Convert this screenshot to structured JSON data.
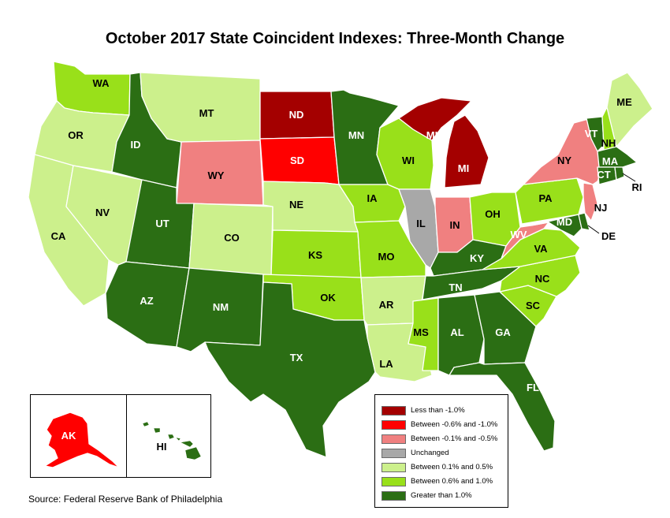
{
  "title": "October 2017 State Coincident Indexes: Three-Month Change",
  "source": "Source: Federal Reserve Bank of Philadelphia",
  "colors": {
    "lt_neg1": "#a40000",
    "neg06_neg1": "#ff0000",
    "neg01_neg05": "#f08080",
    "unchanged": "#a8a8a8",
    "p01_05": "#ccf08c",
    "p06_10": "#99e01a",
    "gt1": "#2b6e14"
  },
  "legend": [
    {
      "key": "lt_neg1",
      "label": "Less than -1.0%"
    },
    {
      "key": "neg06_neg1",
      "label": "Between -0.6% and -1.0%"
    },
    {
      "key": "neg01_neg05",
      "label": "Between -0.1% and -0.5%"
    },
    {
      "key": "unchanged",
      "label": "Unchanged"
    },
    {
      "key": "p01_05",
      "label": "Between 0.1% and 0.5%"
    },
    {
      "key": "p06_10",
      "label": "Between 0.6% and 1.0%"
    },
    {
      "key": "gt1",
      "label": "Greater than 1.0%"
    }
  ],
  "states": {
    "WA": "p06_10",
    "OR": "p01_05",
    "CA": "p01_05",
    "NV": "p01_05",
    "ID": "gt1",
    "MT": "p01_05",
    "WY": "neg01_neg05",
    "UT": "gt1",
    "CO": "p01_05",
    "AZ": "gt1",
    "NM": "gt1",
    "ND": "lt_neg1",
    "SD": "neg06_neg1",
    "NE": "p01_05",
    "KS": "p06_10",
    "OK": "p06_10",
    "TX": "gt1",
    "MN": "gt1",
    "IA": "p06_10",
    "MO": "p06_10",
    "AR": "p01_05",
    "LA": "p01_05",
    "WI": "p06_10",
    "IL": "unchanged",
    "MI": "lt_neg1",
    "IN": "neg01_neg05",
    "OH": "p06_10",
    "KY": "gt1",
    "TN": "gt1",
    "MS": "p06_10",
    "AL": "gt1",
    "GA": "gt1",
    "FL": "gt1",
    "SC": "p06_10",
    "NC": "p06_10",
    "VA": "p06_10",
    "WV": "neg01_neg05",
    "PA": "p06_10",
    "NY": "neg01_neg05",
    "NJ": "neg01_neg05",
    "DE": "gt1",
    "MD": "gt1",
    "VT": "gt1",
    "NH": "p06_10",
    "ME": "p01_05",
    "MA": "gt1",
    "CT": "gt1",
    "RI": "gt1",
    "AK": "neg06_neg1",
    "HI": "gt1"
  },
  "labels": {
    "WA": "WA",
    "OR": "OR",
    "CA": "CA",
    "NV": "NV",
    "ID": "ID",
    "MT": "MT",
    "WY": "WY",
    "UT": "UT",
    "CO": "CO",
    "AZ": "AZ",
    "NM": "NM",
    "ND": "ND",
    "SD": "SD",
    "NE": "NE",
    "KS": "KS",
    "OK": "OK",
    "TX": "TX",
    "MN": "MN",
    "IA": "IA",
    "MO": "MO",
    "AR": "AR",
    "LA": "LA",
    "WI": "WI",
    "IL": "IL",
    "MI_UP": "MI",
    "MI": "MI",
    "IN": "IN",
    "OH": "OH",
    "KY": "KY",
    "TN": "TN",
    "MS": "MS",
    "AL": "AL",
    "GA": "GA",
    "FL": "FL",
    "SC": "SC",
    "NC": "NC",
    "VA": "VA",
    "WV": "WV",
    "PA": "PA",
    "NY": "NY",
    "NJ": "NJ",
    "DE": "DE",
    "MD": "MD",
    "VT": "VT",
    "NH": "NH",
    "ME": "ME",
    "MA": "MA",
    "CT": "CT",
    "RI": "RI",
    "AK": "AK",
    "HI": "HI"
  }
}
